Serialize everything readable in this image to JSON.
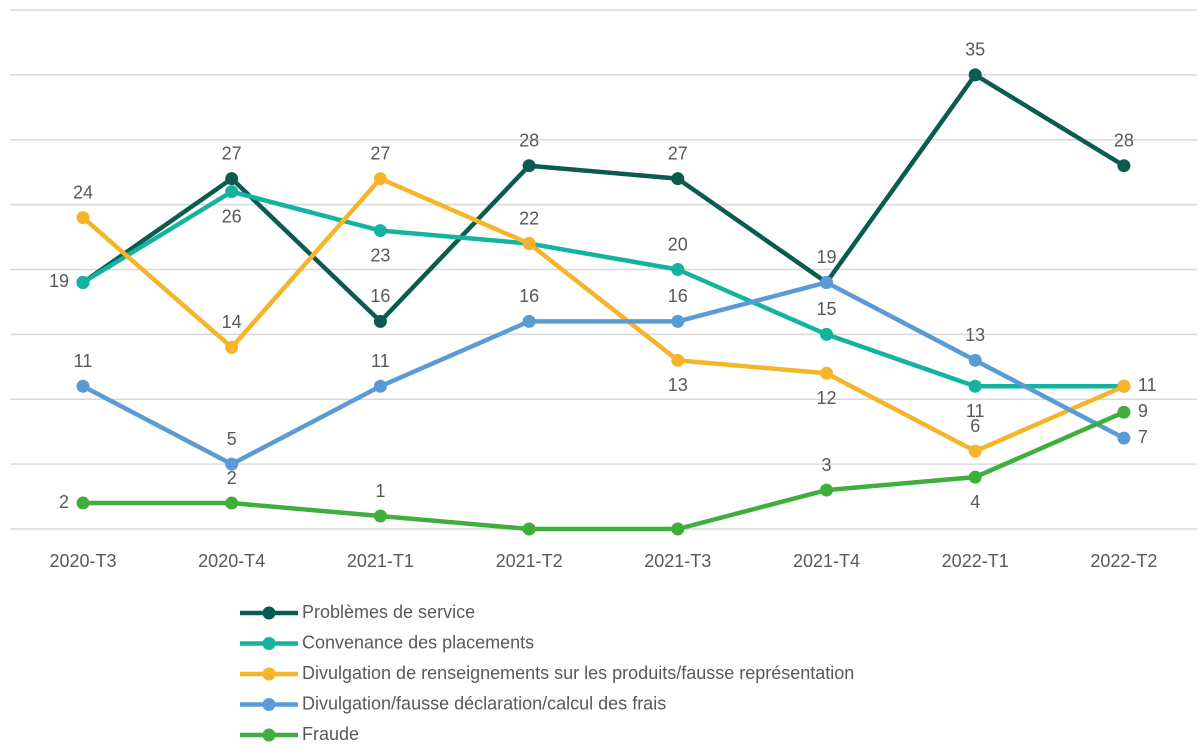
{
  "chart_data": {
    "type": "line",
    "categories": [
      "2020-T3",
      "2020-T4",
      "2021-T1",
      "2021-T2",
      "2021-T3",
      "2021-T4",
      "2022-T1",
      "2022-T2"
    ],
    "ylim": [
      0,
      40
    ],
    "yticks": [
      0,
      5,
      10,
      15,
      20,
      25,
      30,
      35,
      40
    ],
    "grid": true,
    "legend": "bottom",
    "series": [
      {
        "name": "Problèmes de service",
        "color": "#0b5c4f",
        "values": [
          19,
          27,
          16,
          28,
          27,
          19,
          35,
          28
        ],
        "value_labels": [
          null,
          "27",
          "16",
          "28",
          "27",
          null,
          "35",
          "28"
        ]
      },
      {
        "name": "Convenance des placements",
        "color": "#14b3a0",
        "values": [
          19,
          26,
          23,
          22,
          20,
          15,
          11,
          11
        ],
        "value_labels": [
          "19",
          "26",
          "23",
          "22",
          "20",
          "15",
          "11",
          null
        ]
      },
      {
        "name": "Divulgation de renseignements sur les produits/fausse représentation",
        "color": "#f5b42a",
        "values": [
          24,
          14,
          27,
          22,
          13,
          12,
          6,
          11
        ],
        "value_labels": [
          "24",
          "14",
          "27",
          null,
          "13",
          "12",
          "6",
          "11"
        ]
      },
      {
        "name": "Divulgation/fausse déclaration/calcul des frais",
        "color": "#5b9bd5",
        "values": [
          11,
          5,
          11,
          16,
          16,
          19,
          13,
          7
        ],
        "value_labels": [
          "11",
          "5",
          "11",
          "16",
          "16",
          "19",
          "13",
          "7"
        ]
      },
      {
        "name": "Fraude",
        "color": "#3fae3c",
        "values": [
          2,
          2,
          1,
          0,
          0,
          3,
          4,
          9
        ],
        "value_labels": [
          "2",
          "2",
          "1",
          null,
          null,
          "3",
          "4",
          "9"
        ]
      }
    ]
  }
}
